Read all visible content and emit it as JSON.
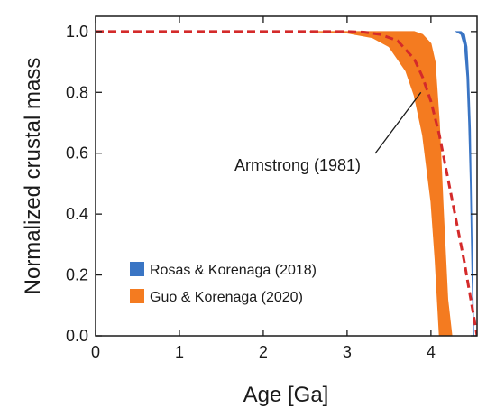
{
  "chart_data": {
    "type": "area",
    "title": "",
    "xlabel": "Age [Ga]",
    "ylabel": "Normalized crustal mass",
    "xlim": [
      0,
      4.55
    ],
    "ylim": [
      0,
      1.05
    ],
    "xticks": [
      0,
      1,
      2,
      3,
      4
    ],
    "xtick_labels": [
      "0",
      "1",
      "2",
      "3",
      "4"
    ],
    "yticks": [
      0.0,
      0.2,
      0.4,
      0.6,
      0.8,
      1.0
    ],
    "ytick_labels": [
      "0.0",
      "0.2",
      "0.4",
      "0.6",
      "0.8",
      "1.0"
    ],
    "grid": false,
    "legend_position": "bottom-left",
    "series": [
      {
        "name": "Rosas & Korenaga (2018)",
        "kind": "band",
        "color": "#3a75c4",
        "x": [
          4.3,
          4.36,
          4.4,
          4.43,
          4.45,
          4.47,
          4.48,
          4.49,
          4.5,
          4.51
        ],
        "lower": [
          1.0,
          0.99,
          0.95,
          0.85,
          0.7,
          0.5,
          0.35,
          0.2,
          0.08,
          0.0
        ],
        "upper": [
          1.0,
          1.0,
          0.99,
          0.95,
          0.85,
          0.68,
          0.5,
          0.33,
          0.15,
          0.0
        ]
      },
      {
        "name": "Guo & Korenaga (2020)",
        "kind": "band",
        "color": "#f47b20",
        "x": [
          2.55,
          3.0,
          3.3,
          3.5,
          3.7,
          3.8,
          3.9,
          4.0,
          4.05,
          4.1,
          4.15,
          4.2,
          4.25
        ],
        "lower": [
          1.0,
          0.995,
          0.98,
          0.95,
          0.87,
          0.79,
          0.66,
          0.44,
          0.25,
          0.0,
          0.0,
          0.0,
          0.0
        ],
        "upper": [
          1.0,
          1.0,
          1.0,
          1.0,
          1.0,
          1.0,
          0.99,
          0.96,
          0.9,
          0.7,
          0.4,
          0.12,
          0.0
        ]
      },
      {
        "name": "Armstrong (1981)",
        "kind": "line",
        "style": "dashed",
        "color": "#d42a2a",
        "x": [
          0.0,
          2.7,
          3.0,
          3.2,
          3.4,
          3.6,
          3.8,
          3.9,
          4.0,
          4.1,
          4.2,
          4.3,
          4.4,
          4.45,
          4.5,
          4.55
        ],
        "y": [
          1.0,
          1.0,
          1.0,
          0.998,
          0.99,
          0.97,
          0.91,
          0.85,
          0.77,
          0.66,
          0.52,
          0.38,
          0.24,
          0.16,
          0.08,
          0.0
        ]
      }
    ],
    "legend": [
      {
        "label": "Rosas & Korenaga (2018)",
        "color": "#3a75c4"
      },
      {
        "label": "Guo & Korenaga (2020)",
        "color": "#f47b20"
      }
    ],
    "annotation": {
      "text": "Armstrong (1981)",
      "points_to": {
        "x": 3.88,
        "y": 0.8
      }
    }
  }
}
